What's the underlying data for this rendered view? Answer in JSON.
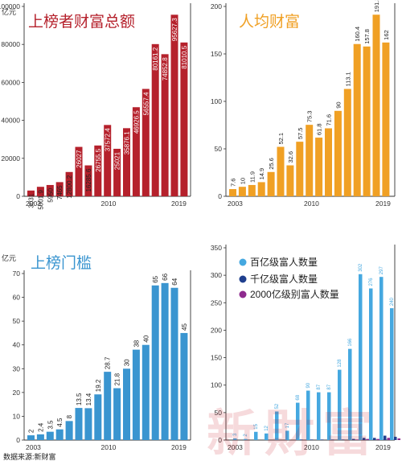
{
  "source_text": "数据来源:新财富",
  "watermark_text": "新財富",
  "unit_label": "亿元",
  "chart_data": [
    {
      "type": "bar",
      "title": "上榜者财富总额",
      "color": "#b5212c",
      "x_start": "2003",
      "x_mid": "2010",
      "x_end": "2019",
      "ylim": [
        0,
        100000
      ],
      "yticks": [
        0,
        20000,
        40000,
        60000,
        80000,
        100000
      ],
      "unit": "亿元",
      "values": [
        3031,
        5001.9,
        5950,
        7465,
        12800.2,
        26027,
        16285.6,
        26755.5,
        37572.4,
        25021,
        35876.1,
        46926.5,
        56557.4,
        80161.2,
        74852.8,
        95627.3,
        81010.5
      ],
      "data_labels": [
        "3031",
        "5001.9",
        "5950",
        "7465",
        "12800.2",
        "26027",
        "16285.6",
        "26755.5",
        "37572.4",
        "25021",
        "35876.1",
        "46926.5",
        "56557.4",
        "80161.2",
        "74852.8",
        "95627.3",
        "81010.5"
      ]
    },
    {
      "type": "bar",
      "title": "人均财富",
      "color": "#f0a024",
      "x_start": "2003",
      "x_mid": "2010",
      "x_end": "2019",
      "ylim": [
        0,
        200
      ],
      "yticks": [
        0,
        50,
        100,
        150,
        200
      ],
      "unit": "亿元",
      "values": [
        7.6,
        10,
        11.9,
        14.9,
        25.6,
        52.1,
        32.6,
        57.5,
        75.3,
        61.8,
        71.6,
        90,
        113.1,
        160.4,
        157.8,
        191.3,
        162
      ],
      "data_labels": [
        "7.6",
        "10",
        "11.9",
        "14.9",
        "25.6",
        "52.1",
        "32.6",
        "57.5",
        "75.3",
        "61.8",
        "71.6",
        "90",
        "113.1",
        "160.4",
        "157.8",
        "191.3",
        "162"
      ]
    },
    {
      "type": "bar",
      "title": "上榜门槛",
      "color": "#3a95d0",
      "x_start": "2003",
      "x_mid": "2010",
      "x_end": "2019",
      "ylim": [
        0,
        70
      ],
      "yticks": [
        0,
        10,
        20,
        30,
        40,
        50,
        60,
        70
      ],
      "unit": "亿元",
      "values": [
        2,
        2.4,
        3.5,
        4.5,
        8,
        13.5,
        13.4,
        19.2,
        28.7,
        21.8,
        30,
        38,
        40,
        65,
        66,
        64,
        45
      ],
      "data_labels": [
        "2",
        "2.4",
        "3.5",
        "4.5",
        "8",
        "13.5",
        "13.4",
        "19.2",
        "28.7",
        "21.8",
        "30",
        "38",
        "40",
        "65",
        "66",
        "64",
        "45"
      ]
    },
    {
      "type": "bar",
      "x_start": "2003",
      "x_mid": "2010",
      "x_end": "2019",
      "ylim": [
        0,
        350
      ],
      "yticks": [
        0,
        50,
        100,
        150,
        200,
        250,
        300,
        350
      ],
      "legend_position": "top",
      "series": [
        {
          "name": "百亿级富人数量",
          "color": "#45a8e0",
          "values": [
            3,
            2,
            15,
            12,
            52,
            17,
            68,
            90,
            87,
            87,
            128,
            166,
            302,
            276,
            297,
            240
          ],
          "data_labels": [
            "3",
            "2",
            "15",
            "12",
            "52",
            "17",
            "68",
            "90",
            "87",
            "87",
            "128",
            "166",
            "302",
            "276",
            "297",
            "240"
          ]
        },
        {
          "name": "千亿级富人数量",
          "color": "#1f3f8e",
          "values": [
            0,
            0,
            0,
            0,
            0,
            0,
            1,
            1,
            1,
            1,
            1,
            2,
            4,
            4,
            8,
            6
          ],
          "data_labels": []
        },
        {
          "name": "2000亿级别富人数量",
          "color": "#8e2a8e",
          "values": [
            0,
            0,
            0,
            0,
            0,
            0,
            0,
            0,
            0,
            0,
            0,
            1,
            2,
            2,
            4,
            3
          ],
          "data_labels": []
        }
      ]
    }
  ]
}
